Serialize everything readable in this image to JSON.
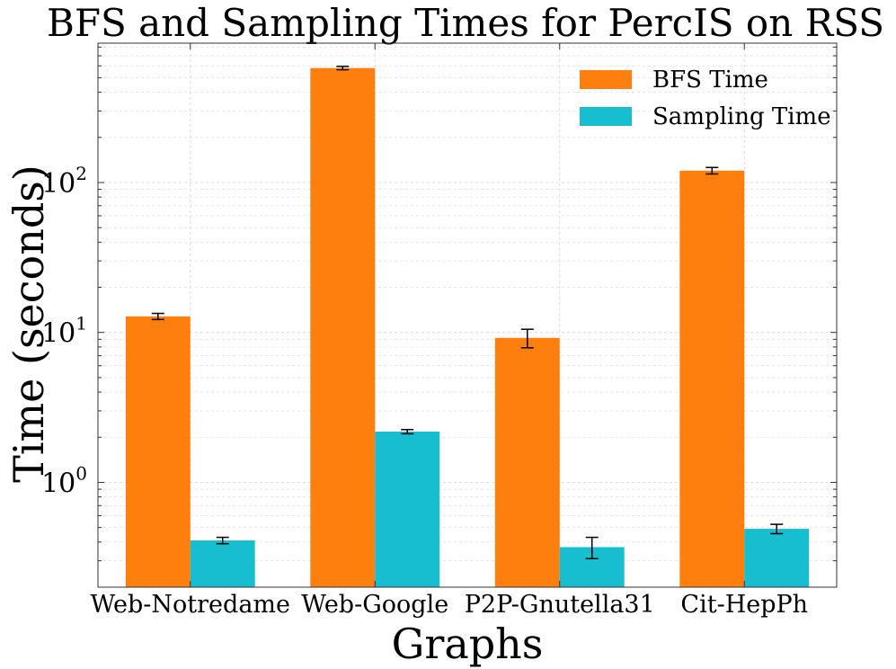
{
  "chart_data": {
    "type": "bar",
    "title": "BFS and Sampling Times for PercIS on RSS",
    "xlabel": "Graphs",
    "ylabel": "Time (seconds)",
    "yscale": "log",
    "ylim": [
      0.2,
      850
    ],
    "categories": [
      "Web-Notredame",
      "Web-Google",
      "P2P-Gnutella31",
      "Cit-HepPh"
    ],
    "series": [
      {
        "name": "BFS Time",
        "color": "#ff7f0e",
        "values": [
          12.8,
          580,
          9.2,
          120
        ],
        "errors": [
          0.6,
          15,
          1.3,
          6
        ]
      },
      {
        "name": "Sampling Time",
        "color": "#17becf",
        "values": [
          0.41,
          2.18,
          0.37,
          0.49
        ],
        "errors": [
          0.02,
          0.07,
          0.06,
          0.035
        ]
      }
    ],
    "yticks": [
      {
        "value": 1,
        "base": "10",
        "exp": "0"
      },
      {
        "value": 10,
        "base": "10",
        "exp": "1"
      },
      {
        "value": 100,
        "base": "10",
        "exp": "2"
      }
    ],
    "grid": true,
    "legend": "top-right"
  }
}
